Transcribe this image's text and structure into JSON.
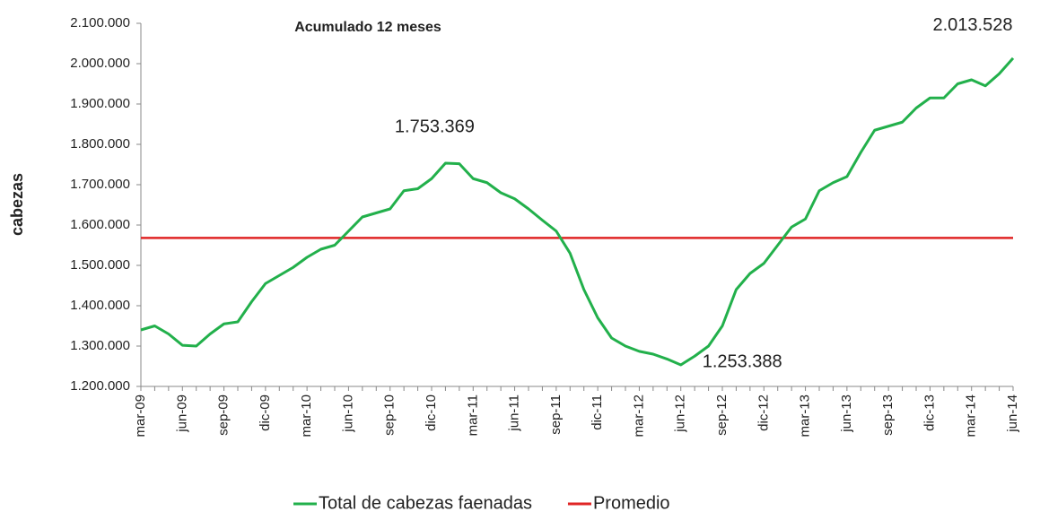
{
  "chart_data": {
    "type": "line",
    "title": "Acumulado 12 meses",
    "y_label": "cabezas",
    "categories": [
      "mar-09",
      null,
      null,
      "jun-09",
      null,
      null,
      "sep-09",
      null,
      null,
      "dic-09",
      null,
      null,
      "mar-10",
      null,
      null,
      "jun-10",
      null,
      null,
      "sep-10",
      null,
      null,
      "dic-10",
      null,
      null,
      "mar-11",
      null,
      null,
      "jun-11",
      null,
      null,
      "sep-11",
      null,
      null,
      "dic-11",
      null,
      null,
      "mar-12",
      null,
      null,
      "jun-12",
      null,
      null,
      "sep-12",
      null,
      null,
      "dic-12",
      null,
      null,
      "mar-13",
      null,
      null,
      "jun-13",
      null,
      null,
      "sep-13",
      null,
      null,
      "dic-13",
      null,
      null,
      "mar-14",
      null,
      null,
      "jun-14"
    ],
    "series": [
      {
        "name": "Total de cabezas faenadas",
        "color": "#22b04b",
        "values": [
          1340000,
          1350000,
          1330000,
          1302000,
          1300000,
          1330000,
          1355000,
          1360000,
          1410000,
          1455000,
          1475000,
          1495000,
          1520000,
          1540000,
          1550000,
          1585000,
          1620000,
          1630000,
          1640000,
          1685000,
          1690000,
          1715000,
          1753369,
          1752000,
          1715000,
          1705000,
          1680000,
          1665000,
          1640000,
          1612000,
          1585000,
          1530000,
          1440000,
          1370000,
          1320000,
          1300000,
          1287000,
          1280000,
          1268000,
          1253388,
          1275000,
          1300000,
          1350000,
          1440000,
          1480000,
          1505000,
          1550000,
          1595000,
          1615000,
          1685000,
          1705000,
          1720000,
          1780000,
          1835000,
          1845000,
          1855000,
          1890000,
          1915000,
          1915000,
          1950000,
          1960000,
          1945000,
          1975000,
          2013528
        ],
        "value_labels": [
          null,
          null,
          null,
          null,
          null,
          null,
          null,
          null,
          null,
          null,
          null,
          null,
          null,
          null,
          null,
          null,
          null,
          null,
          null,
          null,
          null,
          null,
          "1.753.369",
          null,
          null,
          null,
          null,
          null,
          null,
          null,
          null,
          null,
          null,
          null,
          null,
          null,
          null,
          null,
          null,
          "1.253.388",
          null,
          null,
          null,
          null,
          null,
          null,
          null,
          null,
          null,
          null,
          null,
          null,
          null,
          null,
          null,
          null,
          null,
          null,
          null,
          null,
          null,
          null,
          null,
          "2.013.528"
        ]
      }
    ],
    "reference_line": {
      "name": "Promedio",
      "value": 1568000,
      "color": "#e02525"
    },
    "ylim": [
      1200000,
      2100000
    ],
    "yticks": [
      {
        "value": 1200000,
        "label": "1.200.000"
      },
      {
        "value": 1300000,
        "label": "1.300.000"
      },
      {
        "value": 1400000,
        "label": "1.400.000"
      },
      {
        "value": 1500000,
        "label": "1.500.000"
      },
      {
        "value": 1600000,
        "label": "1.600.000"
      },
      {
        "value": 1700000,
        "label": "1.700.000"
      },
      {
        "value": 1800000,
        "label": "1.800.000"
      },
      {
        "value": 1900000,
        "label": "1.900.000"
      },
      {
        "value": 2000000,
        "label": "2.000.000"
      },
      {
        "value": 2100000,
        "label": "2.100.000"
      }
    ],
    "legend": "bottom"
  }
}
